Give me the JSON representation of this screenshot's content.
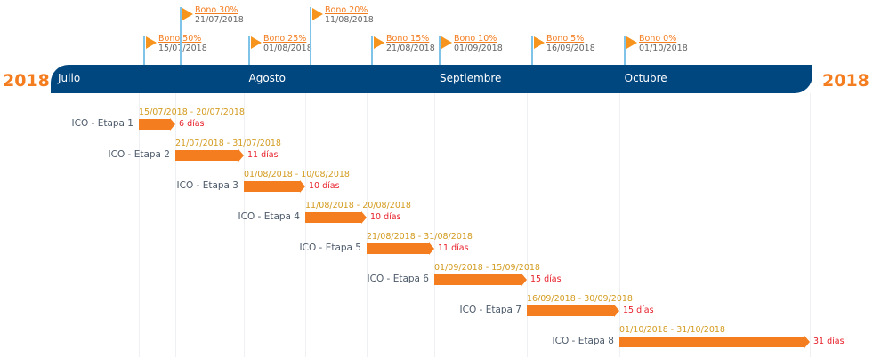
{
  "year_left": "2018",
  "year_right": "2018",
  "months": [
    "Julio",
    "Agosto",
    "Septiembre",
    "Octubre"
  ],
  "colors": {
    "axis": "#00467f",
    "bar": "#f47d20",
    "flag": "#f7941d",
    "milestone_line": "#7fc4e8",
    "range_text": "#d39b1e",
    "duration_text": "#e8202a"
  },
  "milestones": [
    {
      "label": "Bono 50%",
      "date": "15/07/2018",
      "level": "low"
    },
    {
      "label": "Bono 30%",
      "date": "21/07/2018",
      "level": "high"
    },
    {
      "label": "Bono 25%",
      "date": "01/08/2018",
      "level": "low"
    },
    {
      "label": "Bono 20%",
      "date": "11/08/2018",
      "level": "high"
    },
    {
      "label": "Bono 15%",
      "date": "21/08/2018",
      "level": "low"
    },
    {
      "label": "Bono 10%",
      "date": "01/09/2018",
      "level": "low"
    },
    {
      "label": "Bono 5%",
      "date": "16/09/2018",
      "level": "low"
    },
    {
      "label": "Bono 0%",
      "date": "01/10/2018",
      "level": "low"
    }
  ],
  "tasks": [
    {
      "name": "ICO - Etapa 1",
      "range": "15/07/2018 - 20/07/2018",
      "duration": "6 días",
      "start": "2018-07-15",
      "end": "2018-07-20"
    },
    {
      "name": "ICO - Etapa 2",
      "range": "21/07/2018 - 31/07/2018",
      "duration": "11 días",
      "start": "2018-07-21",
      "end": "2018-07-31"
    },
    {
      "name": "ICO - Etapa 3",
      "range": "01/08/2018 - 10/08/2018",
      "duration": "10 días",
      "start": "2018-08-01",
      "end": "2018-08-10"
    },
    {
      "name": "ICO - Etapa 4",
      "range": "11/08/2018 - 20/08/2018",
      "duration": "10 días",
      "start": "2018-08-11",
      "end": "2018-08-20"
    },
    {
      "name": "ICO - Etapa 5",
      "range": "21/08/2018 - 31/08/2018",
      "duration": "11 días",
      "start": "2018-08-21",
      "end": "2018-08-31"
    },
    {
      "name": "ICO - Etapa 6",
      "range": "01/09/2018 - 15/09/2018",
      "duration": "15 días",
      "start": "2018-09-01",
      "end": "2018-09-15"
    },
    {
      "name": "ICO - Etapa 7",
      "range": "16/09/2018 - 30/09/2018",
      "duration": "15 días",
      "start": "2018-09-16",
      "end": "2018-09-30"
    },
    {
      "name": "ICO - Etapa 8",
      "range": "01/10/2018 - 31/10/2018",
      "duration": "31 días",
      "start": "2018-10-01",
      "end": "2018-10-31"
    }
  ]
}
